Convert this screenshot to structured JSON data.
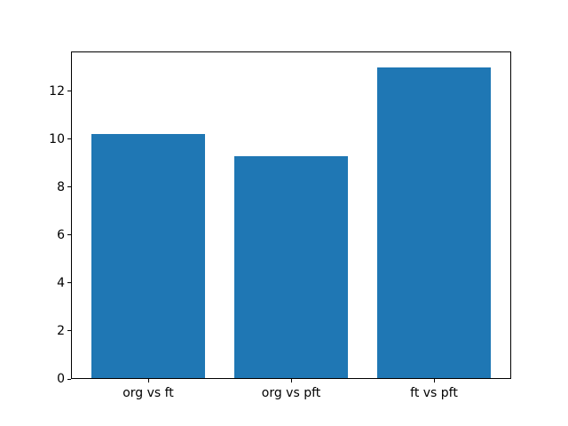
{
  "figure": {
    "background": "#ffffff",
    "frame_color": "#000000"
  },
  "chart_data": {
    "type": "bar",
    "categories": [
      "org vs ft",
      "org vs pft",
      "ft vs pft"
    ],
    "values": [
      10.2,
      9.3,
      13.0
    ],
    "title": "",
    "xlabel": "",
    "ylabel": "",
    "ylim": [
      0,
      13.65
    ],
    "xlim": [
      -0.54,
      2.54
    ],
    "yticks": [
      0,
      2,
      4,
      6,
      8,
      10,
      12
    ],
    "ytick_labels": [
      "0",
      "2",
      "4",
      "6",
      "8",
      "10",
      "12"
    ],
    "bar_width": 0.8,
    "bar_color": "#1f77b4",
    "grid": false,
    "legend": null
  }
}
